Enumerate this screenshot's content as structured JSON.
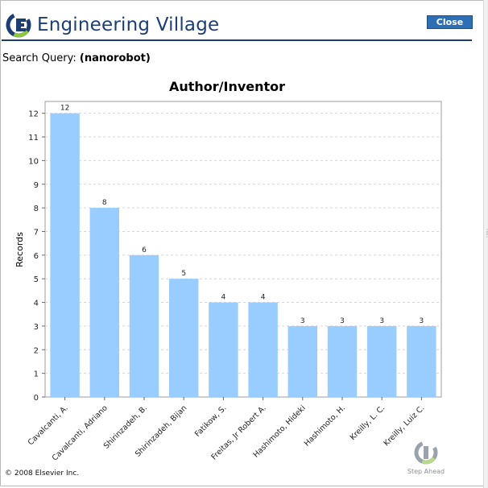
{
  "header": {
    "logo_text": "Engineering Village",
    "close_label": "Close",
    "brand_color": "#1c3f73",
    "logo_accent": "#8dc63f"
  },
  "query": {
    "label": "Search Query:",
    "value": "(nanorobot)"
  },
  "chart_data": {
    "type": "bar",
    "title": "Author/Inventor",
    "xlabel": "",
    "ylabel": "Records",
    "categories": [
      "Cavalcanti, A.",
      "Cavalcanti, Adriano",
      "Shirinzadeh, B.",
      "Shirinzadeh, Bijan",
      "Fatikow, S.",
      "Freitas, Jr Robert A.",
      "Hashimoto, Hideki",
      "Hashimoto, H.",
      "Kreilly, L. C.",
      "Kreilly, Luiz C."
    ],
    "values": [
      12,
      8,
      6,
      5,
      4,
      4,
      3,
      3,
      3,
      3
    ],
    "ylim": [
      0,
      12.5
    ],
    "yticks": [
      0,
      1,
      2,
      3,
      4,
      5,
      6,
      7,
      8,
      9,
      10,
      11,
      12
    ],
    "grid": true,
    "bar_color": "#99ccff"
  },
  "footer": {
    "copyright": "© 2008 Elsevier Inc.",
    "step_ahead": "Step Ahead"
  }
}
